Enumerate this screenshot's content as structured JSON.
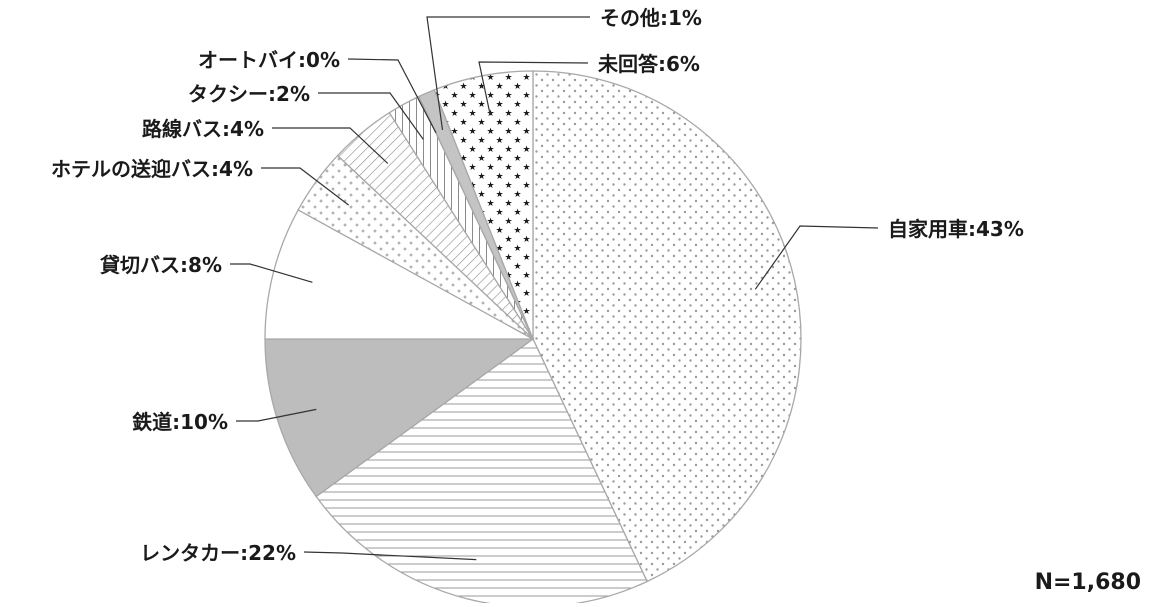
{
  "chart_data": {
    "type": "pie",
    "title": "",
    "sample_size_label": "N=1,680",
    "start": "12 o'clock",
    "direction": "clockwise",
    "slices": [
      {
        "label": "自家用車",
        "value": 43,
        "text": "自家用車:43%",
        "pattern": "dots",
        "color": "#9a9a9a"
      },
      {
        "label": "レンタカー",
        "value": 22,
        "text": "レンタカー:22%",
        "pattern": "horizontal-lines",
        "color": "#9a9a9a"
      },
      {
        "label": "鉄道",
        "value": 10,
        "text": "鉄道:10%",
        "pattern": "solid",
        "color": "#bdbdbd"
      },
      {
        "label": "貸切バス",
        "value": 8,
        "text": "貸切バス:8%",
        "pattern": "none",
        "color": "#ffffff"
      },
      {
        "label": "ホテルの送迎バス",
        "value": 4,
        "text": "ホテルの送迎バス:4%",
        "pattern": "plus",
        "color": "#9a9a9a"
      },
      {
        "label": "路線バス",
        "value": 4,
        "text": "路線バス:4%",
        "pattern": "diagonal-lines",
        "color": "#8a8a8a"
      },
      {
        "label": "タクシー",
        "value": 2,
        "text": "タクシー:2%",
        "pattern": "vertical-lines",
        "color": "#8a8a8a"
      },
      {
        "label": "オートバイ",
        "value": 0,
        "text": "オートバイ:0%",
        "pattern": "none",
        "color": "#ffffff"
      },
      {
        "label": "その他",
        "value": 1,
        "text": "その他:1%",
        "pattern": "solid",
        "color": "#c4c4c4"
      },
      {
        "label": "未回答",
        "value": 6,
        "text": "未回答:6%",
        "pattern": "stars",
        "color": "#9a9a9a"
      }
    ]
  }
}
